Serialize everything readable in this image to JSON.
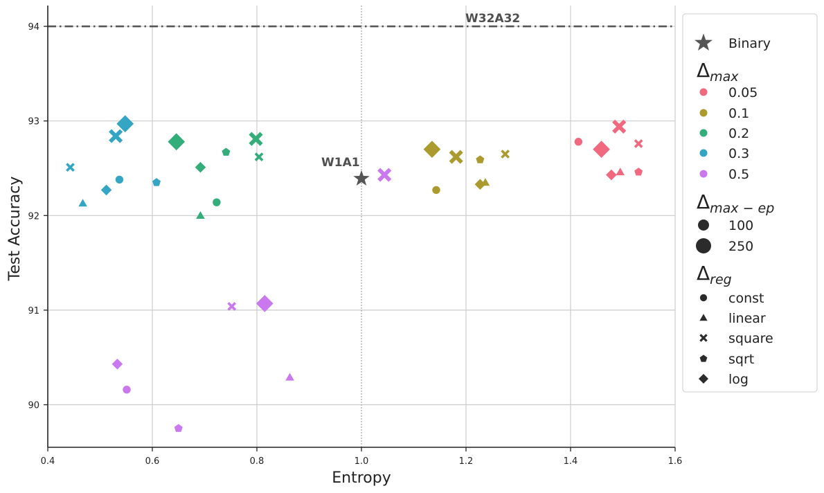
{
  "chart_data": {
    "type": "scatter",
    "xlabel": "Entropy",
    "ylabel": "Test Accuracy",
    "xlim": [
      0.4,
      1.6
    ],
    "ylim": [
      89.55,
      94.22
    ],
    "xticks": [
      0.4,
      0.6,
      0.8,
      1.0,
      1.2,
      1.4,
      1.6
    ],
    "yticks": [
      90,
      91,
      92,
      93,
      94
    ],
    "grid": true,
    "legend_position": "right, outside plot",
    "reference_lines": [
      {
        "orientation": "horizontal",
        "y": 94,
        "label": "W32A32",
        "style": "dash-dot",
        "color": "#555555"
      },
      {
        "orientation": "vertical",
        "x": 1.0,
        "style": "dotted",
        "color": "#aaaaaa"
      }
    ],
    "binary_point": {
      "x": 1.0,
      "y": 92.39,
      "label": "W1A1",
      "marker": "star",
      "color": "#555555"
    },
    "colors": {
      "0.05": "#f0697f",
      "0.1": "#ab9a2e",
      "0.2": "#33ad79",
      "0.3": "#35a5c4",
      "0.5": "#c978ee"
    },
    "series": [
      {
        "name": "0.05",
        "points": [
          {
            "x": 1.415,
            "y": 92.78,
            "marker": "const",
            "ep": 100
          },
          {
            "x": 1.495,
            "y": 92.46,
            "marker": "linear",
            "ep": 100
          },
          {
            "x": 1.493,
            "y": 92.94,
            "marker": "square",
            "ep": 250
          },
          {
            "x": 1.53,
            "y": 92.76,
            "marker": "square",
            "ep": 100
          },
          {
            "x": 1.53,
            "y": 92.46,
            "marker": "sqrt",
            "ep": 100
          },
          {
            "x": 1.459,
            "y": 92.7,
            "marker": "log",
            "ep": 250
          },
          {
            "x": 1.478,
            "y": 92.43,
            "marker": "log",
            "ep": 100
          }
        ]
      },
      {
        "name": "0.1",
        "points": [
          {
            "x": 1.143,
            "y": 92.27,
            "marker": "const",
            "ep": 100
          },
          {
            "x": 1.237,
            "y": 92.35,
            "marker": "linear",
            "ep": 100
          },
          {
            "x": 1.181,
            "y": 92.62,
            "marker": "square",
            "ep": 250
          },
          {
            "x": 1.275,
            "y": 92.65,
            "marker": "square",
            "ep": 100
          },
          {
            "x": 1.227,
            "y": 92.59,
            "marker": "sqrt",
            "ep": 100
          },
          {
            "x": 1.135,
            "y": 92.7,
            "marker": "log",
            "ep": 250
          },
          {
            "x": 1.227,
            "y": 92.33,
            "marker": "log",
            "ep": 100
          }
        ]
      },
      {
        "name": "0.2",
        "points": [
          {
            "x": 0.723,
            "y": 92.14,
            "marker": "const",
            "ep": 100
          },
          {
            "x": 0.692,
            "y": 92.0,
            "marker": "linear",
            "ep": 100
          },
          {
            "x": 0.798,
            "y": 92.81,
            "marker": "square",
            "ep": 250
          },
          {
            "x": 0.804,
            "y": 92.62,
            "marker": "square",
            "ep": 100
          },
          {
            "x": 0.741,
            "y": 92.67,
            "marker": "sqrt",
            "ep": 100
          },
          {
            "x": 0.646,
            "y": 92.78,
            "marker": "log",
            "ep": 250
          },
          {
            "x": 0.692,
            "y": 92.51,
            "marker": "log",
            "ep": 100
          }
        ]
      },
      {
        "name": "0.3",
        "points": [
          {
            "x": 0.537,
            "y": 92.38,
            "marker": "const",
            "ep": 100
          },
          {
            "x": 0.467,
            "y": 92.13,
            "marker": "linear",
            "ep": 100
          },
          {
            "x": 0.53,
            "y": 92.84,
            "marker": "square",
            "ep": 250
          },
          {
            "x": 0.443,
            "y": 92.51,
            "marker": "square",
            "ep": 100
          },
          {
            "x": 0.608,
            "y": 92.35,
            "marker": "sqrt",
            "ep": 100
          },
          {
            "x": 0.548,
            "y": 92.97,
            "marker": "log",
            "ep": 250
          },
          {
            "x": 0.512,
            "y": 92.27,
            "marker": "log",
            "ep": 100
          }
        ]
      },
      {
        "name": "0.5",
        "points": [
          {
            "x": 0.551,
            "y": 90.16,
            "marker": "const",
            "ep": 100
          },
          {
            "x": 0.863,
            "y": 90.29,
            "marker": "linear",
            "ep": 100
          },
          {
            "x": 1.044,
            "y": 92.43,
            "marker": "square",
            "ep": 250
          },
          {
            "x": 0.752,
            "y": 91.04,
            "marker": "square",
            "ep": 100
          },
          {
            "x": 0.65,
            "y": 89.75,
            "marker": "sqrt",
            "ep": 100
          },
          {
            "x": 0.815,
            "y": 91.07,
            "marker": "log",
            "ep": 250
          },
          {
            "x": 0.533,
            "y": 90.43,
            "marker": "log",
            "ep": 100
          }
        ]
      }
    ]
  },
  "legend": {
    "binary_label": "Binary",
    "title_max_main": "Δ",
    "title_max_sub": "max",
    "delta_max": [
      "0.05",
      "0.1",
      "0.2",
      "0.3",
      "0.5"
    ],
    "title_ep_main": "Δ",
    "title_ep_sub": "max − ep",
    "delta_ep": [
      "100",
      "250"
    ],
    "title_reg_main": "Δ",
    "title_reg_sub": "reg",
    "delta_reg": [
      {
        "label": "const",
        "marker": "const"
      },
      {
        "label": "linear",
        "marker": "linear"
      },
      {
        "label": "square",
        "marker": "square"
      },
      {
        "label": "sqrt",
        "marker": "sqrt"
      },
      {
        "label": "log",
        "marker": "log"
      }
    ],
    "marker_color": "#2b2b2b"
  }
}
